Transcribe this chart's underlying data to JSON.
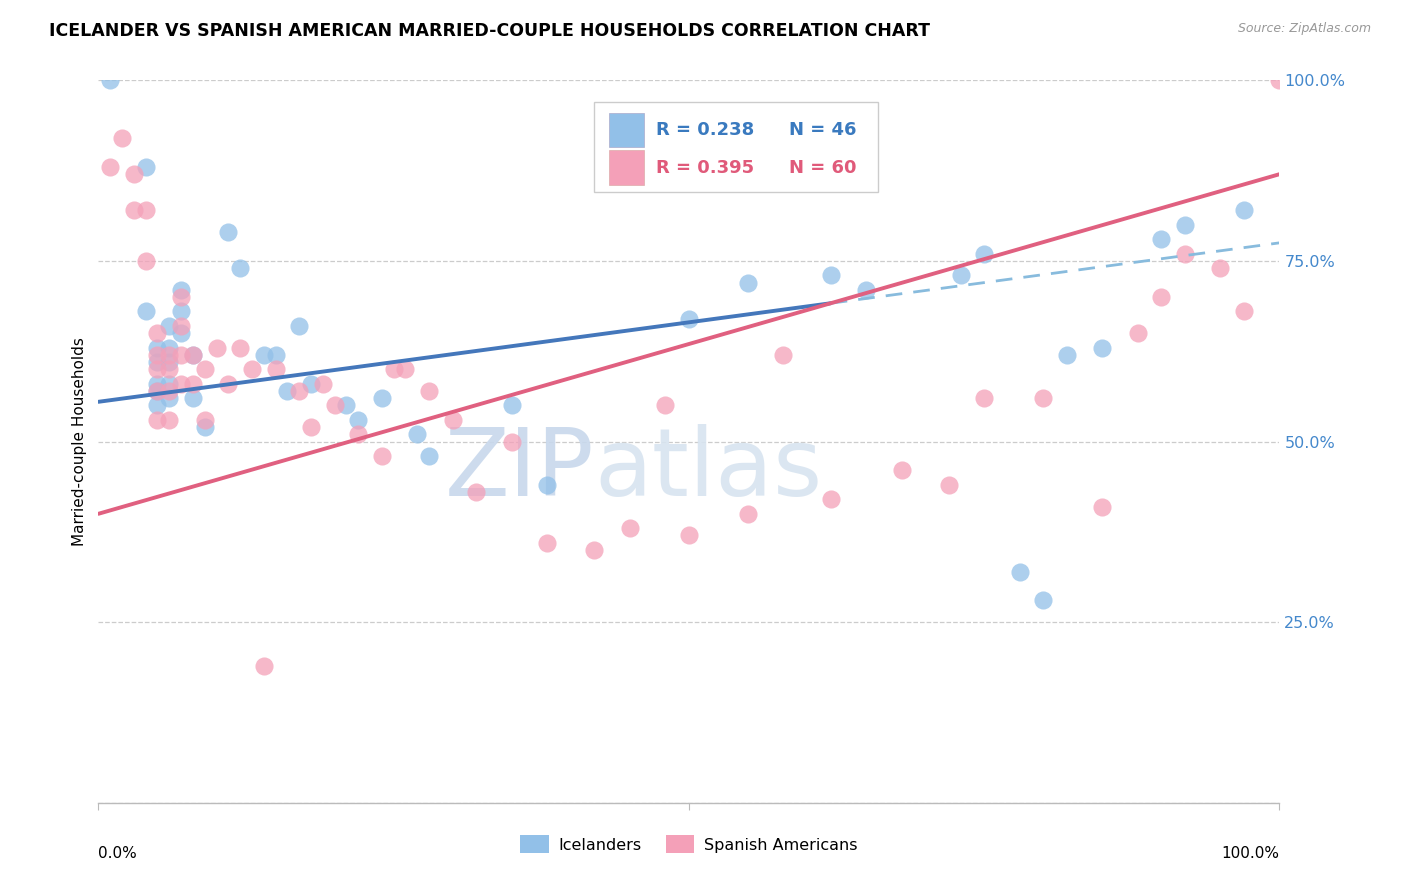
{
  "title": "ICELANDER VS SPANISH AMERICAN MARRIED-COUPLE HOUSEHOLDS CORRELATION CHART",
  "source": "Source: ZipAtlas.com",
  "ylabel": "Married-couple Households",
  "xlim": [
    0.0,
    1.0
  ],
  "ylim": [
    0.0,
    1.0
  ],
  "yticks": [
    0.0,
    0.25,
    0.5,
    0.75,
    1.0
  ],
  "ytick_labels": [
    "",
    "25.0%",
    "50.0%",
    "75.0%",
    "100.0%"
  ],
  "legend_blue_label": "Icelanders",
  "legend_pink_label": "Spanish Americans",
  "blue_color": "#92c0e8",
  "pink_color": "#f4a0b8",
  "blue_line_color": "#4477bb",
  "pink_line_color": "#e06080",
  "dashed_line_color": "#88bbdd",
  "watermark_zip": "ZIP",
  "watermark_atlas": "atlas",
  "blue_intercept": 0.555,
  "blue_slope": 0.22,
  "pink_intercept": 0.4,
  "pink_slope": 0.47,
  "icelander_x": [
    0.01,
    0.04,
    0.04,
    0.05,
    0.05,
    0.05,
    0.05,
    0.05,
    0.06,
    0.06,
    0.06,
    0.06,
    0.06,
    0.07,
    0.07,
    0.07,
    0.08,
    0.08,
    0.09,
    0.11,
    0.12,
    0.14,
    0.15,
    0.16,
    0.17,
    0.18,
    0.21,
    0.22,
    0.24,
    0.27,
    0.28,
    0.35,
    0.38,
    0.5,
    0.55,
    0.62,
    0.65,
    0.73,
    0.75,
    0.78,
    0.8,
    0.82,
    0.85,
    0.9,
    0.92,
    0.97
  ],
  "icelander_y": [
    1.0,
    0.88,
    0.68,
    0.63,
    0.61,
    0.58,
    0.57,
    0.55,
    0.66,
    0.63,
    0.61,
    0.58,
    0.56,
    0.71,
    0.68,
    0.65,
    0.62,
    0.56,
    0.52,
    0.79,
    0.74,
    0.62,
    0.62,
    0.57,
    0.66,
    0.58,
    0.55,
    0.53,
    0.56,
    0.51,
    0.48,
    0.55,
    0.44,
    0.67,
    0.72,
    0.73,
    0.71,
    0.73,
    0.76,
    0.32,
    0.28,
    0.62,
    0.63,
    0.78,
    0.8,
    0.82
  ],
  "spanish_x": [
    0.01,
    0.02,
    0.03,
    0.03,
    0.04,
    0.04,
    0.05,
    0.05,
    0.05,
    0.05,
    0.05,
    0.06,
    0.06,
    0.06,
    0.06,
    0.07,
    0.07,
    0.07,
    0.07,
    0.08,
    0.08,
    0.09,
    0.09,
    0.1,
    0.11,
    0.12,
    0.13,
    0.14,
    0.15,
    0.17,
    0.18,
    0.19,
    0.2,
    0.22,
    0.24,
    0.25,
    0.26,
    0.28,
    0.3,
    0.32,
    0.35,
    0.38,
    0.42,
    0.45,
    0.48,
    0.5,
    0.55,
    0.58,
    0.62,
    0.68,
    0.72,
    0.75,
    0.8,
    0.85,
    0.88,
    0.9,
    0.92,
    0.95,
    0.97,
    1.0
  ],
  "spanish_y": [
    0.88,
    0.92,
    0.87,
    0.82,
    0.82,
    0.75,
    0.65,
    0.62,
    0.6,
    0.57,
    0.53,
    0.62,
    0.6,
    0.57,
    0.53,
    0.7,
    0.66,
    0.62,
    0.58,
    0.62,
    0.58,
    0.6,
    0.53,
    0.63,
    0.58,
    0.63,
    0.6,
    0.19,
    0.6,
    0.57,
    0.52,
    0.58,
    0.55,
    0.51,
    0.48,
    0.6,
    0.6,
    0.57,
    0.53,
    0.43,
    0.5,
    0.36,
    0.35,
    0.38,
    0.55,
    0.37,
    0.4,
    0.62,
    0.42,
    0.46,
    0.44,
    0.56,
    0.56,
    0.41,
    0.65,
    0.7,
    0.76,
    0.74,
    0.68,
    1.0
  ]
}
